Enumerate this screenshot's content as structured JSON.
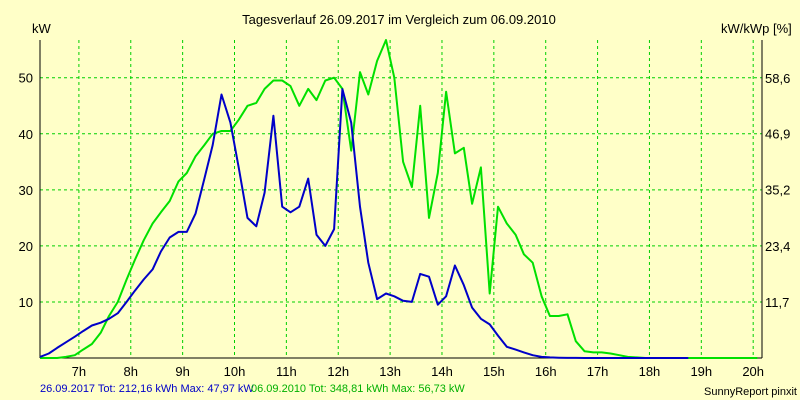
{
  "colors": {
    "background": "#FFFFC8",
    "grid": "#00D000",
    "series_2017": "#0000C8",
    "series_2010": "#00E000",
    "footer_2017": "#0000C8",
    "footer_2010": "#00B000"
  },
  "footer": {
    "series_2017_text": "26.09.2017 Tot: 212,16 kWh Max: 47,97 kW",
    "series_2010_text": "06.09.2010 Tot: 348,81 kWh Max: 56,73 kW",
    "credit": "SunnyReport pinxit"
  },
  "chart_data": {
    "type": "line",
    "title": "Tagesverlauf 26.09.2017 im Vergleich zum 06.09.2010",
    "ylabel": "kW",
    "ylabel_right": "kW/kWp [%]",
    "x_tick_labels": [
      "7h",
      "8h",
      "9h",
      "10h",
      "11h",
      "12h",
      "13h",
      "14h",
      "15h",
      "16h",
      "17h",
      "18h",
      "19h",
      "20h"
    ],
    "x_tick_hours": [
      7,
      8,
      9,
      10,
      11,
      12,
      13,
      14,
      15,
      16,
      17,
      18,
      19,
      20
    ],
    "xlim": [
      6.25,
      20.17
    ],
    "ylim": [
      0,
      56.73
    ],
    "y_ticks": [
      10,
      20,
      30,
      40,
      50
    ],
    "y_tick_labels": [
      "10",
      "20",
      "30",
      "40",
      "50"
    ],
    "y_right_ticks": [
      11.7,
      23.4,
      35.2,
      46.9,
      58.6
    ],
    "y_right_tick_labels": [
      "11,7",
      "23,4",
      "35,2",
      "46,9",
      "58,6"
    ],
    "ylim_right": [
      0,
      66.5
    ],
    "grid": true,
    "series": [
      {
        "key": "s2017",
        "x": [
          6.25,
          6.42,
          6.58,
          6.75,
          6.92,
          7.08,
          7.25,
          7.42,
          7.58,
          7.75,
          7.92,
          8.08,
          8.25,
          8.42,
          8.58,
          8.75,
          8.92,
          9.08,
          9.25,
          9.42,
          9.58,
          9.75,
          9.92,
          10.08,
          10.25,
          10.42,
          10.58,
          10.75,
          10.92,
          11.08,
          11.25,
          11.42,
          11.58,
          11.75,
          11.92,
          12.08,
          12.25,
          12.42,
          12.58,
          12.75,
          12.92,
          13.08,
          13.25,
          13.42,
          13.58,
          13.75,
          13.92,
          14.08,
          14.25,
          14.42,
          14.58,
          14.75,
          14.92,
          15.08,
          15.25,
          15.42,
          15.58,
          15.75,
          15.92,
          16.08,
          16.25,
          16.42,
          16.58,
          16.75,
          16.92,
          17.08,
          17.25,
          17.42,
          17.58,
          17.75,
          17.92,
          18.08,
          18.25,
          18.42,
          18.58,
          18.75
        ],
        "y": [
          0.2,
          0.8,
          1.8,
          2.8,
          3.8,
          4.8,
          5.8,
          6.3,
          7,
          8,
          10,
          12,
          14,
          15.8,
          19,
          21.5,
          22.5,
          22.5,
          25.8,
          32,
          38,
          47,
          42,
          34,
          25,
          23.5,
          29.5,
          43.2,
          27,
          26,
          27,
          32,
          22,
          20,
          23,
          47.97,
          42,
          27,
          17,
          10.5,
          11.5,
          11,
          10.2,
          10,
          15,
          14.5,
          9.5,
          11,
          16.5,
          13,
          9,
          7,
          6,
          4,
          2,
          1.5,
          1,
          0.5,
          0.2,
          0.1,
          0.05,
          0.02,
          0.01,
          0.005,
          0.002,
          0,
          0,
          0,
          0,
          0,
          0,
          0,
          0,
          0,
          0,
          0
        ]
      },
      {
        "key": "s2010",
        "x": [
          6.25,
          6.42,
          6.58,
          6.75,
          6.92,
          7.08,
          7.25,
          7.42,
          7.58,
          7.75,
          7.92,
          8.08,
          8.25,
          8.42,
          8.58,
          8.75,
          8.92,
          9.08,
          9.25,
          9.42,
          9.58,
          9.75,
          9.92,
          10.08,
          10.25,
          10.42,
          10.58,
          10.75,
          10.92,
          11.08,
          11.25,
          11.42,
          11.58,
          11.75,
          11.92,
          12.08,
          12.25,
          12.42,
          12.58,
          12.75,
          12.92,
          13.08,
          13.25,
          13.42,
          13.58,
          13.75,
          13.92,
          14.08,
          14.25,
          14.42,
          14.58,
          14.75,
          14.92,
          15.08,
          15.25,
          15.42,
          15.58,
          15.75,
          15.92,
          16.08,
          16.25,
          16.42,
          16.58,
          16.75,
          16.92,
          17.08,
          17.25,
          17.42,
          17.58,
          17.75,
          17.92,
          18.08,
          18.25,
          18.42,
          18.58,
          18.75,
          18.92,
          19.08,
          19.25,
          19.42,
          19.58,
          19.75,
          19.92,
          20.08
        ],
        "y": [
          0,
          0,
          0,
          0.2,
          0.5,
          1.5,
          2.5,
          4.5,
          7.5,
          10,
          14,
          17.5,
          21,
          24,
          26,
          28,
          31.5,
          33,
          36,
          38,
          40,
          40.5,
          40.5,
          42.5,
          45,
          45.5,
          48,
          49.5,
          49.5,
          48.5,
          45,
          48,
          46,
          49.5,
          50,
          48,
          37,
          51,
          47,
          53,
          56.73,
          50,
          35,
          30.5,
          45,
          25,
          33,
          47.5,
          36.5,
          37.5,
          27.5,
          34,
          11.5,
          27,
          24,
          22,
          18.5,
          17,
          11,
          7.5,
          7.5,
          7.8,
          3,
          1.2,
          1,
          1,
          0.8,
          0.5,
          0.2,
          0.1,
          0,
          0,
          0,
          0,
          0,
          0,
          0,
          0,
          0,
          0,
          0,
          0,
          0,
          0
        ]
      }
    ]
  }
}
